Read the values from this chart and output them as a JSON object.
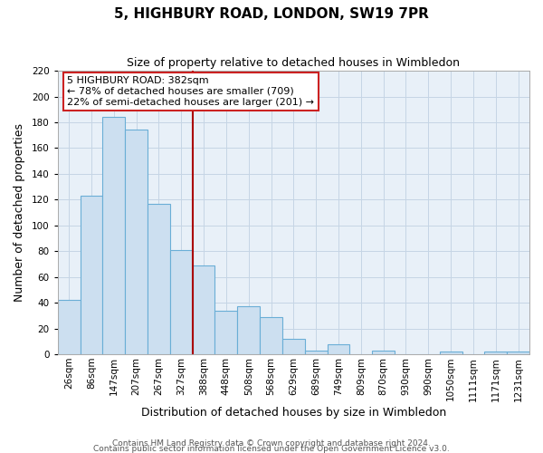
{
  "title": "5, HIGHBURY ROAD, LONDON, SW19 7PR",
  "subtitle": "Size of property relative to detached houses in Wimbledon",
  "xlabel": "Distribution of detached houses by size in Wimbledon",
  "ylabel": "Number of detached properties",
  "bar_labels": [
    "26sqm",
    "86sqm",
    "147sqm",
    "207sqm",
    "267sqm",
    "327sqm",
    "388sqm",
    "448sqm",
    "508sqm",
    "568sqm",
    "629sqm",
    "689sqm",
    "749sqm",
    "809sqm",
    "870sqm",
    "930sqm",
    "990sqm",
    "1050sqm",
    "1111sqm",
    "1171sqm",
    "1231sqm"
  ],
  "bar_values": [
    42,
    123,
    184,
    174,
    117,
    81,
    69,
    34,
    37,
    29,
    12,
    3,
    8,
    0,
    3,
    0,
    0,
    2,
    0,
    2,
    2
  ],
  "bar_color": "#ccdff0",
  "bar_edge_color": "#6aaed6",
  "ylim": [
    0,
    220
  ],
  "yticks": [
    0,
    20,
    40,
    60,
    80,
    100,
    120,
    140,
    160,
    180,
    200,
    220
  ],
  "vline_x_index": 6,
  "vline_color": "#aa0000",
  "annotation_line1": "5 HIGHBURY ROAD: 382sqm",
  "annotation_line2": "← 78% of detached houses are smaller (709)",
  "annotation_line3": "22% of semi-detached houses are larger (201) →",
  "footer_line1": "Contains HM Land Registry data © Crown copyright and database right 2024.",
  "footer_line2": "Contains public sector information licensed under the Open Government Licence v3.0.",
  "background_color": "#ffffff",
  "plot_bg_color": "#e8f0f8",
  "grid_color": "#c5d5e5",
  "title_fontsize": 11,
  "subtitle_fontsize": 9,
  "axis_label_fontsize": 9,
  "tick_fontsize": 7.5,
  "footer_fontsize": 6.5
}
